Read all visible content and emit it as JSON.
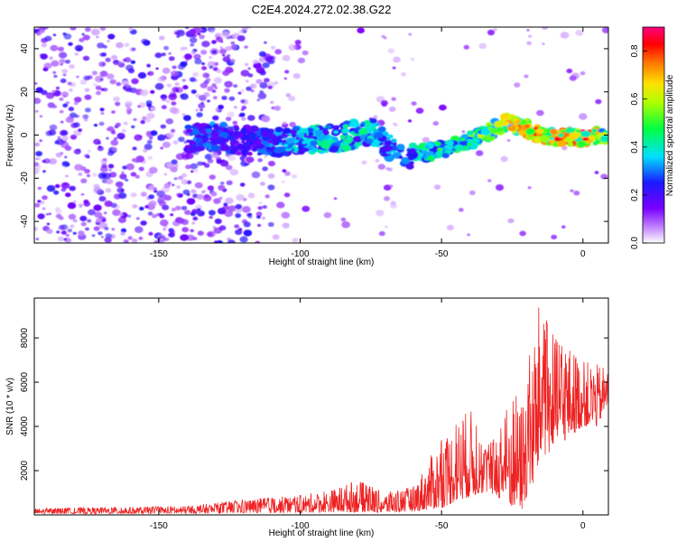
{
  "title": "C2E4.2024.272.02.38.G22",
  "colors": {
    "snr_line": "#ee2222",
    "axis": "#000000",
    "background": "#ffffff"
  },
  "chart_data": [
    {
      "type": "heatmap",
      "title": "C2E4.2024.272.02.38.G22",
      "xlabel": "Height of straight line (km)",
      "ylabel": "Frequency (Hz)",
      "xlim": [
        -194,
        9
      ],
      "ylim": [
        -50,
        50
      ],
      "x_ticks": [
        -150,
        -100,
        -50,
        0
      ],
      "y_ticks": [
        -40,
        -20,
        0,
        20,
        40
      ],
      "grid": false,
      "colorbar": {
        "label": "Normalized spectral amplitude",
        "range": [
          0,
          0.9
        ],
        "ticks": [
          "0.0",
          "0.2",
          "0.4",
          "0.6",
          "0.8"
        ],
        "colormap": "rainbow (purple-blue-cyan-green-yellow-red-pink)"
      },
      "ridge": {
        "x": [
          -140,
          -130,
          -120,
          -105,
          -95,
          -85,
          -75,
          -65,
          -55,
          -45,
          -35,
          -28,
          -22,
          -15,
          -8,
          0,
          8
        ],
        "frequency_hz": [
          -2,
          0,
          -3,
          -3,
          -2,
          -1,
          2,
          -10,
          -8,
          -5,
          0,
          6,
          4,
          0,
          -1,
          -1,
          0
        ],
        "amplitude": [
          0.3,
          0.35,
          0.25,
          0.4,
          0.45,
          0.45,
          0.45,
          0.35,
          0.5,
          0.55,
          0.6,
          0.7,
          0.8,
          0.85,
          0.88,
          0.9,
          0.6
        ]
      }
    },
    {
      "type": "line",
      "xlabel": "Height of straight line (km)",
      "ylabel": "SNR (10 * v/v)",
      "xlim": [
        -194,
        9
      ],
      "ylim": [
        0,
        9800
      ],
      "x_ticks": [
        -150,
        -100,
        -50,
        0
      ],
      "y_ticks": [
        2000,
        4000,
        6000,
        8000
      ],
      "grid": false,
      "envelope": {
        "x": [
          -194,
          -170,
          -140,
          -120,
          -100,
          -90,
          -80,
          -70,
          -60,
          -50,
          -45,
          -40,
          -35,
          -30,
          -25,
          -22,
          -20,
          -17,
          -15,
          -10,
          -5,
          0,
          5,
          9
        ],
        "min": [
          50,
          50,
          60,
          80,
          100,
          120,
          120,
          100,
          150,
          300,
          600,
          800,
          1000,
          800,
          300,
          150,
          500,
          1500,
          2500,
          3000,
          3500,
          4000,
          4000,
          5000
        ],
        "max": [
          300,
          350,
          400,
          700,
          900,
          1100,
          1600,
          1000,
          1300,
          3500,
          4200,
          4900,
          3200,
          3600,
          6000,
          5000,
          6500,
          8500,
          9800,
          8000,
          7700,
          7000,
          6800,
          6600
        ]
      }
    }
  ]
}
